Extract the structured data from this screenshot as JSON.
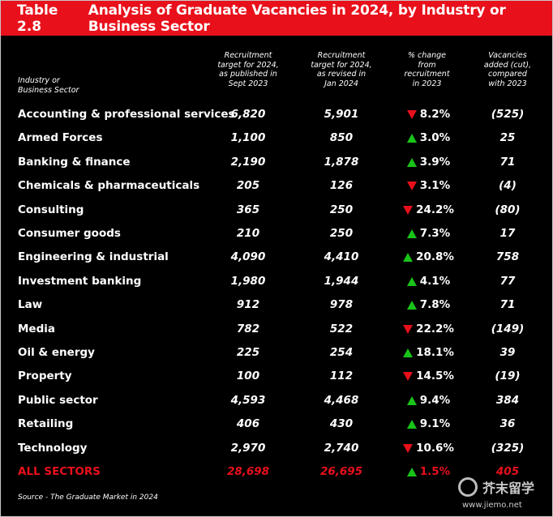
{
  "title": {
    "number": "Table 2.8",
    "text": "Analysis of Graduate Vacancies in 2024, by Industry or Business Sector"
  },
  "headers": {
    "sector": [
      "Industry or",
      "Business Sector"
    ],
    "col1": [
      "Recruitment",
      "target for 2024,",
      "as published in",
      "Sept 2023"
    ],
    "col2": [
      "Recruitment",
      "target for 2024,",
      "as revised in",
      "Jan 2024"
    ],
    "col3": [
      "% change",
      "from",
      "recruitment",
      "in 2023"
    ],
    "col4": [
      "Vacancies",
      "added (cut),",
      "compared",
      "with 2023"
    ]
  },
  "rows": [
    {
      "sector": "Accounting & professional services",
      "sept": "6,820",
      "jan": "5,901",
      "dir": "down",
      "pct": "8.2%",
      "added": "(525)"
    },
    {
      "sector": "Armed Forces",
      "sept": "1,100",
      "jan": "850",
      "dir": "up",
      "pct": "3.0%",
      "added": "25"
    },
    {
      "sector": "Banking & finance",
      "sept": "2,190",
      "jan": "1,878",
      "dir": "up",
      "pct": "3.9%",
      "added": "71"
    },
    {
      "sector": "Chemicals & pharmaceuticals",
      "sept": "205",
      "jan": "126",
      "dir": "down",
      "pct": "3.1%",
      "added": "(4)"
    },
    {
      "sector": "Consulting",
      "sept": "365",
      "jan": "250",
      "dir": "down",
      "pct": "24.2%",
      "added": "(80)"
    },
    {
      "sector": "Consumer goods",
      "sept": "210",
      "jan": "250",
      "dir": "up",
      "pct": "7.3%",
      "added": "17"
    },
    {
      "sector": "Engineering & industrial",
      "sept": "4,090",
      "jan": "4,410",
      "dir": "up",
      "pct": "20.8%",
      "added": "758"
    },
    {
      "sector": "Investment banking",
      "sept": "1,980",
      "jan": "1,944",
      "dir": "up",
      "pct": "4.1%",
      "added": "77"
    },
    {
      "sector": "Law",
      "sept": "912",
      "jan": "978",
      "dir": "up",
      "pct": "7.8%",
      "added": "71"
    },
    {
      "sector": "Media",
      "sept": "782",
      "jan": "522",
      "dir": "down",
      "pct": "22.2%",
      "added": "(149)"
    },
    {
      "sector": "Oil & energy",
      "sept": "225",
      "jan": "254",
      "dir": "up",
      "pct": "18.1%",
      "added": "39"
    },
    {
      "sector": "Property",
      "sept": "100",
      "jan": "112",
      "dir": "down",
      "pct": "14.5%",
      "added": "(19)"
    },
    {
      "sector": "Public sector",
      "sept": "4,593",
      "jan": "4,468",
      "dir": "up",
      "pct": "9.4%",
      "added": "384"
    },
    {
      "sector": "Retailing",
      "sept": "406",
      "jan": "430",
      "dir": "up",
      "pct": "9.1%",
      "added": "36"
    },
    {
      "sector": "Technology",
      "sept": "2,970",
      "jan": "2,740",
      "dir": "down",
      "pct": "10.6%",
      "added": "(325)"
    }
  ],
  "total": {
    "sector": "ALL SECTORS",
    "sept": "28,698",
    "jan": "26,695",
    "dir": "up",
    "pct": "1.5%",
    "added": "405"
  },
  "source": "Source - The Graduate Market in 2024",
  "watermark": {
    "name": "芥末留学",
    "url": "www.jiemo.net"
  },
  "colors": {
    "accent": "#e8101b",
    "up": "#19c419",
    "down": "#e8101b",
    "background": "#000000"
  }
}
